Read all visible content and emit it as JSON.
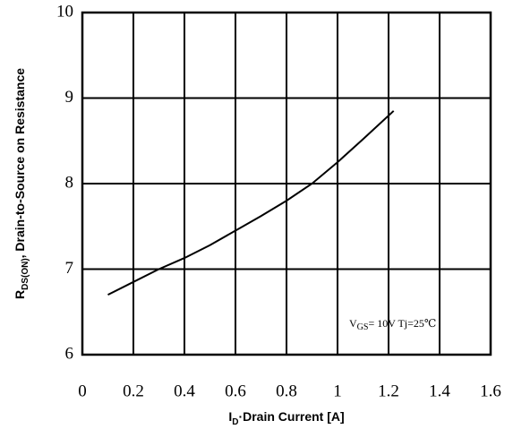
{
  "chart_data": {
    "type": "line",
    "x_label": {
      "main": "I",
      "sub": "D",
      "rest": "·Drain Current [A]"
    },
    "y_label": {
      "main": "R",
      "sub": "DS(ON)",
      "rest": ", Drain-to-Source on Resistance"
    },
    "annotation": {
      "main": "V",
      "sub": "GS",
      "rest": "= 10V  Tj=25℃"
    },
    "x": [
      0.1,
      0.2,
      0.3,
      0.4,
      0.5,
      0.6,
      0.7,
      0.8,
      0.9,
      1.0,
      1.1,
      1.22
    ],
    "series": [
      {
        "color": "#000000",
        "values": [
          6.7,
          6.85,
          7.0,
          7.13,
          7.28,
          7.45,
          7.62,
          7.8,
          8.0,
          8.25,
          8.52,
          8.85
        ]
      }
    ],
    "xlim": [
      0,
      1.6
    ],
    "xticks": [
      0,
      0.2,
      0.4,
      0.6,
      0.8,
      1,
      1.2,
      1.4,
      1.6
    ],
    "ylim": [
      6,
      10
    ],
    "yticks": [
      6,
      7,
      8,
      9,
      10
    ],
    "grid": true
  }
}
